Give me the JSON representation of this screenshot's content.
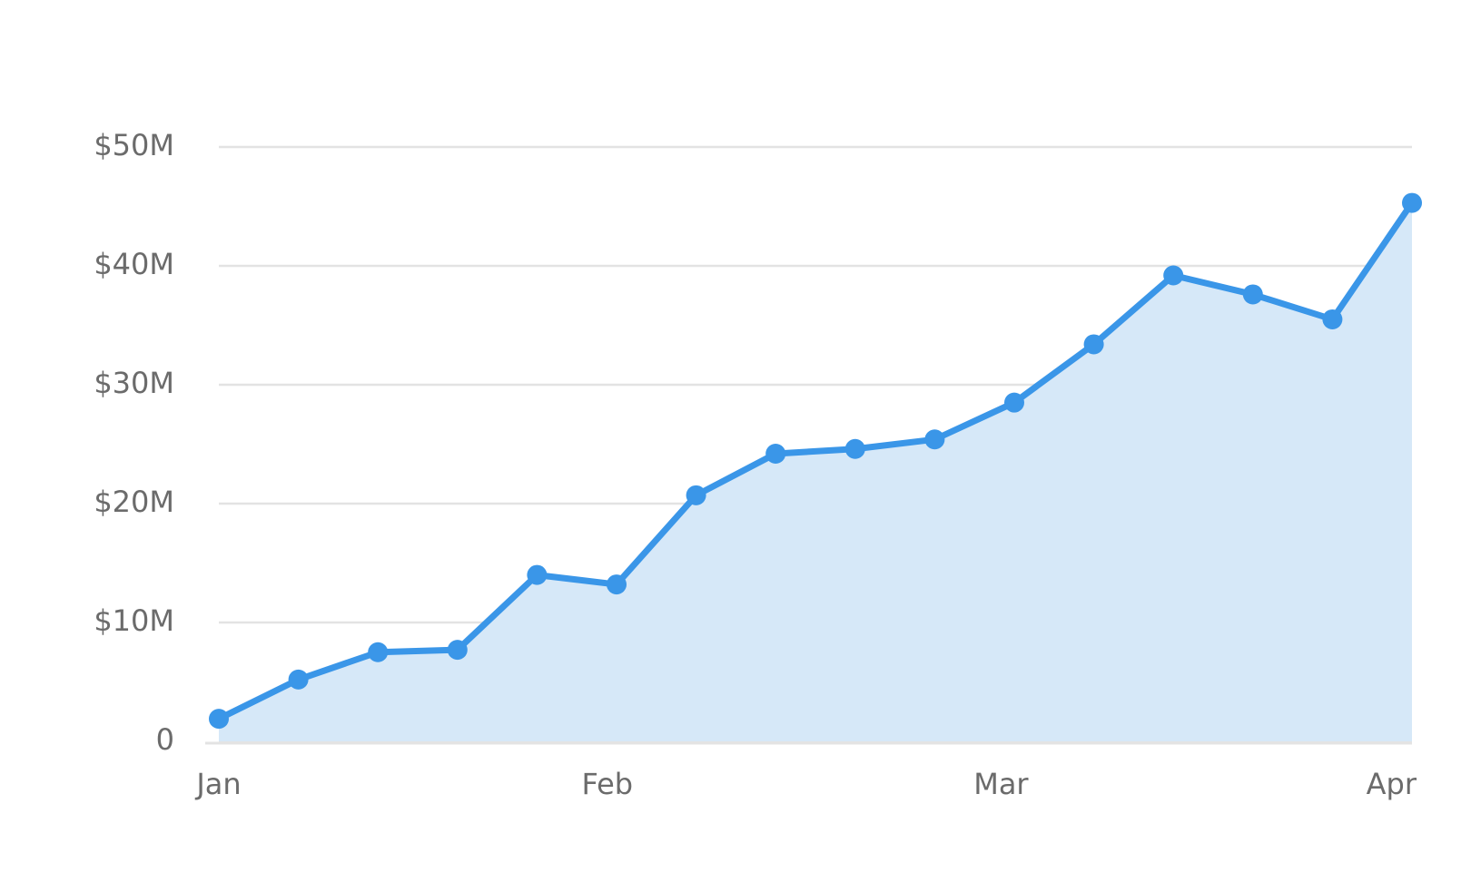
{
  "chart_data": {
    "type": "area",
    "x": [
      0,
      6,
      12,
      18,
      24,
      30,
      36,
      42,
      48,
      54,
      60,
      66,
      72,
      78,
      84,
      90
    ],
    "series": [
      {
        "color": "#3a96e8",
        "area_color": "#d6e8f8",
        "values": [
          1.9,
          5.2,
          7.5,
          7.7,
          14.0,
          13.2,
          20.7,
          24.2,
          24.6,
          25.4,
          28.5,
          33.4,
          39.2,
          37.6,
          35.5,
          45.3
        ]
      }
    ],
    "xlim": [
      0,
      90
    ],
    "xticks": [
      {
        "value": 0,
        "label": "Jan"
      },
      {
        "value": 29.3,
        "label": "Feb"
      },
      {
        "value": 59,
        "label": "Mar"
      },
      {
        "value": 88,
        "label": "Apr"
      }
    ],
    "ylim": [
      0,
      50
    ],
    "yticks": [
      0,
      {
        "value": 10,
        "label": "$10M"
      },
      {
        "value": 20,
        "label": "$20M"
      },
      {
        "value": 30,
        "label": "$30M"
      },
      {
        "value": 40,
        "label": "$40M"
      },
      {
        "value": 50,
        "label": "$50M"
      }
    ],
    "grid": true
  }
}
